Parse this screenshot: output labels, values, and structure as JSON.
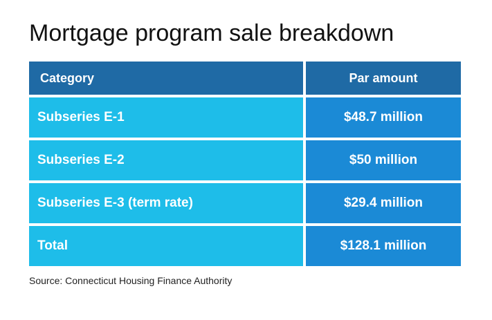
{
  "title": "Mortgage program sale breakdown",
  "table": {
    "headers": [
      "Category",
      "Par amount"
    ],
    "rows": [
      [
        "Subseries E-1",
        "$48.7 million"
      ],
      [
        "Subseries E-2",
        "$50 million"
      ],
      [
        "Subseries E-3 (term rate)",
        "$29.4 million"
      ],
      [
        "Total",
        "$128.1 million"
      ]
    ]
  },
  "source": "Source: Connecticut Housing Finance Authority",
  "colors": {
    "header_bg": "#1f6aa5",
    "category_bg": "#1ebde9",
    "amount_bg": "#1b8ad6",
    "text_on_cells": "#ffffff"
  }
}
